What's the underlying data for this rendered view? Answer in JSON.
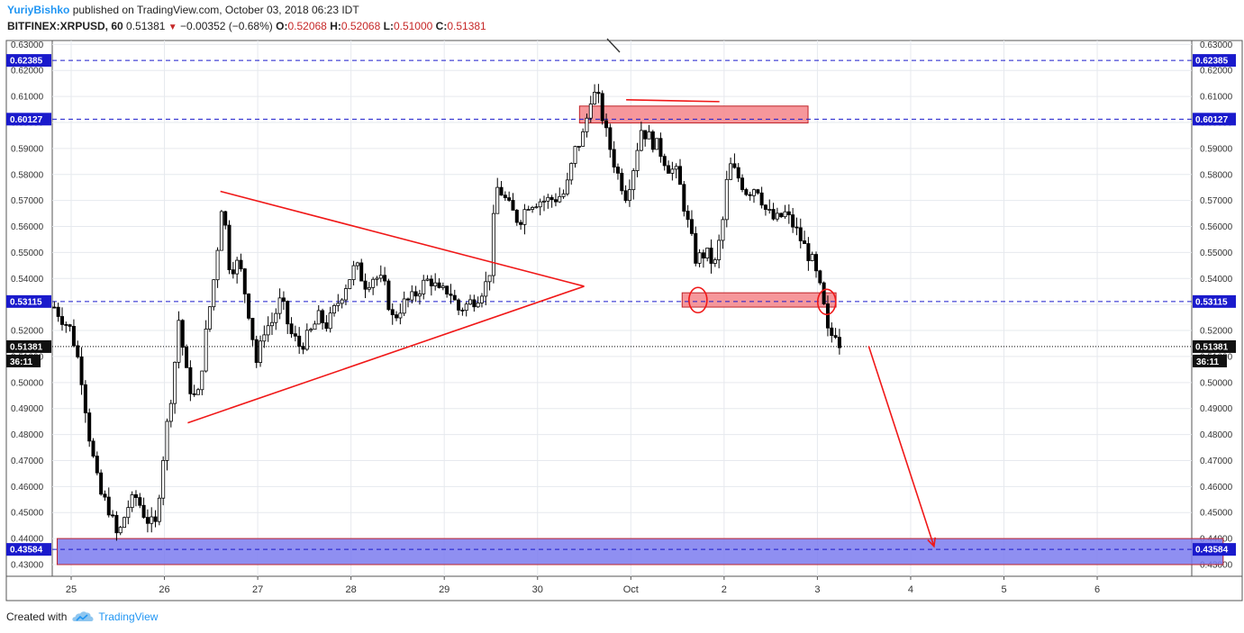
{
  "header": {
    "author": "YuriyBishko",
    "published": "published on TradingView.com, October 03, 2018 06:23 IDT",
    "symbol": "BITFINEX:XRPUSD, 60",
    "last": "0.51381",
    "change": "−0.00352 (−0.68%)",
    "o_label": "O:",
    "o_value": "0.52068",
    "h_label": "H:",
    "h_value": "0.52068",
    "l_label": "L:",
    "l_value": "0.51000",
    "c_label": "C:",
    "c_value": "0.51381"
  },
  "footer": {
    "created_with": "Created with",
    "brand": "TradingView"
  },
  "chart_data": {
    "type": "candlestick",
    "ylim": [
      0.4255,
      0.6315
    ],
    "y_ticks": [
      "0.43000",
      "0.44000",
      "0.45000",
      "0.46000",
      "0.47000",
      "0.48000",
      "0.49000",
      "0.50000",
      "0.51000",
      "0.52000",
      "0.53000",
      "0.54000",
      "0.55000",
      "0.56000",
      "0.57000",
      "0.58000",
      "0.59000",
      "0.60000",
      "0.61000",
      "0.62000",
      "0.63000"
    ],
    "x_ticks": [
      "25",
      "26",
      "27",
      "28",
      "29",
      "30",
      "Oct",
      "2",
      "3",
      "4",
      "5",
      "6"
    ],
    "price_levels": [
      {
        "value": 0.62385,
        "label": "0.62385",
        "style": "dashed",
        "color": "#1a1acc"
      },
      {
        "value": 0.60127,
        "label": "0.60127",
        "style": "dashed",
        "color": "#1a1acc"
      },
      {
        "value": 0.53115,
        "label": "0.53115",
        "style": "dashed",
        "color": "#1a1acc"
      },
      {
        "value": 0.51381,
        "label": "0.51381",
        "style": "dotted",
        "color": "#000000",
        "countdown": "36:11"
      },
      {
        "value": 0.43584,
        "label": "0.43584",
        "style": "dashed",
        "color": "#1a1acc"
      }
    ],
    "zones": [
      {
        "x": [
          30.45,
          32.9
        ],
        "y": [
          0.5998,
          0.6063
        ],
        "color": "#f4858a"
      },
      {
        "x": [
          31.55,
          33.2
        ],
        "y": [
          0.529,
          0.5345
        ],
        "color": "#f4858a"
      },
      {
        "x": [
          24.85,
          37.35
        ],
        "y": [
          0.43,
          0.44
        ],
        "color": "#7b7bef"
      }
    ],
    "trendlines": [
      {
        "from": [
          26.6,
          0.5735
        ],
        "to": [
          30.5,
          0.537
        ],
        "color": "#f01818"
      },
      {
        "from": [
          26.25,
          0.4845
        ],
        "to": [
          30.5,
          0.537
        ],
        "color": "#f01818"
      },
      {
        "from": [
          30.95,
          0.6087
        ],
        "to": [
          31.95,
          0.608
        ],
        "color": "#f01818"
      }
    ],
    "circles": [
      {
        "x": 31.72,
        "y": 0.5317
      },
      {
        "x": 33.1,
        "y": 0.531
      }
    ],
    "arrow": {
      "from": [
        33.55,
        0.514
      ],
      "to": [
        34.25,
        0.437
      ],
      "color": "#f01818"
    },
    "path": [
      [
        24.8,
        0.53
      ],
      [
        25.0,
        0.52
      ],
      [
        25.1,
        0.505
      ],
      [
        25.2,
        0.478
      ],
      [
        25.3,
        0.458
      ],
      [
        25.4,
        0.452
      ],
      [
        25.5,
        0.44
      ],
      [
        25.6,
        0.452
      ],
      [
        25.7,
        0.456
      ],
      [
        25.8,
        0.448
      ],
      [
        25.9,
        0.444
      ],
      [
        26.0,
        0.476
      ],
      [
        26.1,
        0.503
      ],
      [
        26.15,
        0.525
      ],
      [
        26.25,
        0.5
      ],
      [
        26.35,
        0.492
      ],
      [
        26.45,
        0.52
      ],
      [
        26.55,
        0.545
      ],
      [
        26.62,
        0.571
      ],
      [
        26.7,
        0.544
      ],
      [
        26.8,
        0.546
      ],
      [
        26.9,
        0.528
      ],
      [
        27.0,
        0.505
      ],
      [
        27.05,
        0.52
      ],
      [
        27.15,
        0.523
      ],
      [
        27.25,
        0.532
      ],
      [
        27.35,
        0.519
      ],
      [
        27.45,
        0.514
      ],
      [
        27.55,
        0.518
      ],
      [
        27.65,
        0.525
      ],
      [
        27.75,
        0.522
      ],
      [
        27.85,
        0.53
      ],
      [
        27.95,
        0.538
      ],
      [
        28.05,
        0.545
      ],
      [
        28.15,
        0.538
      ],
      [
        28.25,
        0.541
      ],
      [
        28.35,
        0.538
      ],
      [
        28.45,
        0.524
      ],
      [
        28.55,
        0.53
      ],
      [
        28.65,
        0.532
      ],
      [
        28.75,
        0.537
      ],
      [
        28.85,
        0.54
      ],
      [
        28.95,
        0.534
      ],
      [
        29.05,
        0.536
      ],
      [
        29.15,
        0.528
      ],
      [
        29.25,
        0.53
      ],
      [
        29.35,
        0.533
      ],
      [
        29.45,
        0.538
      ],
      [
        29.5,
        0.545
      ],
      [
        29.55,
        0.575
      ],
      [
        29.6,
        0.574
      ],
      [
        29.7,
        0.567
      ],
      [
        29.8,
        0.562
      ],
      [
        29.9,
        0.569
      ],
      [
        30.0,
        0.57
      ],
      [
        30.1,
        0.57
      ],
      [
        30.2,
        0.571
      ],
      [
        30.3,
        0.573
      ],
      [
        30.4,
        0.589
      ],
      [
        30.5,
        0.596
      ],
      [
        30.58,
        0.612
      ],
      [
        30.66,
        0.608
      ],
      [
        30.74,
        0.595
      ],
      [
        30.85,
        0.581
      ],
      [
        30.95,
        0.572
      ],
      [
        31.05,
        0.586
      ],
      [
        31.1,
        0.598
      ],
      [
        31.2,
        0.594
      ],
      [
        31.3,
        0.59
      ],
      [
        31.4,
        0.583
      ],
      [
        31.5,
        0.58
      ],
      [
        31.6,
        0.563
      ],
      [
        31.7,
        0.547
      ],
      [
        31.8,
        0.55
      ],
      [
        31.9,
        0.545
      ],
      [
        31.98,
        0.56
      ],
      [
        32.05,
        0.584
      ],
      [
        32.15,
        0.579
      ],
      [
        32.25,
        0.573
      ],
      [
        32.35,
        0.576
      ],
      [
        32.45,
        0.566
      ],
      [
        32.55,
        0.562
      ],
      [
        32.65,
        0.565
      ],
      [
        32.75,
        0.56
      ],
      [
        32.85,
        0.553
      ],
      [
        32.95,
        0.546
      ],
      [
        33.05,
        0.533
      ],
      [
        33.12,
        0.517
      ],
      [
        33.2,
        0.52
      ],
      [
        33.25,
        0.514
      ]
    ]
  }
}
